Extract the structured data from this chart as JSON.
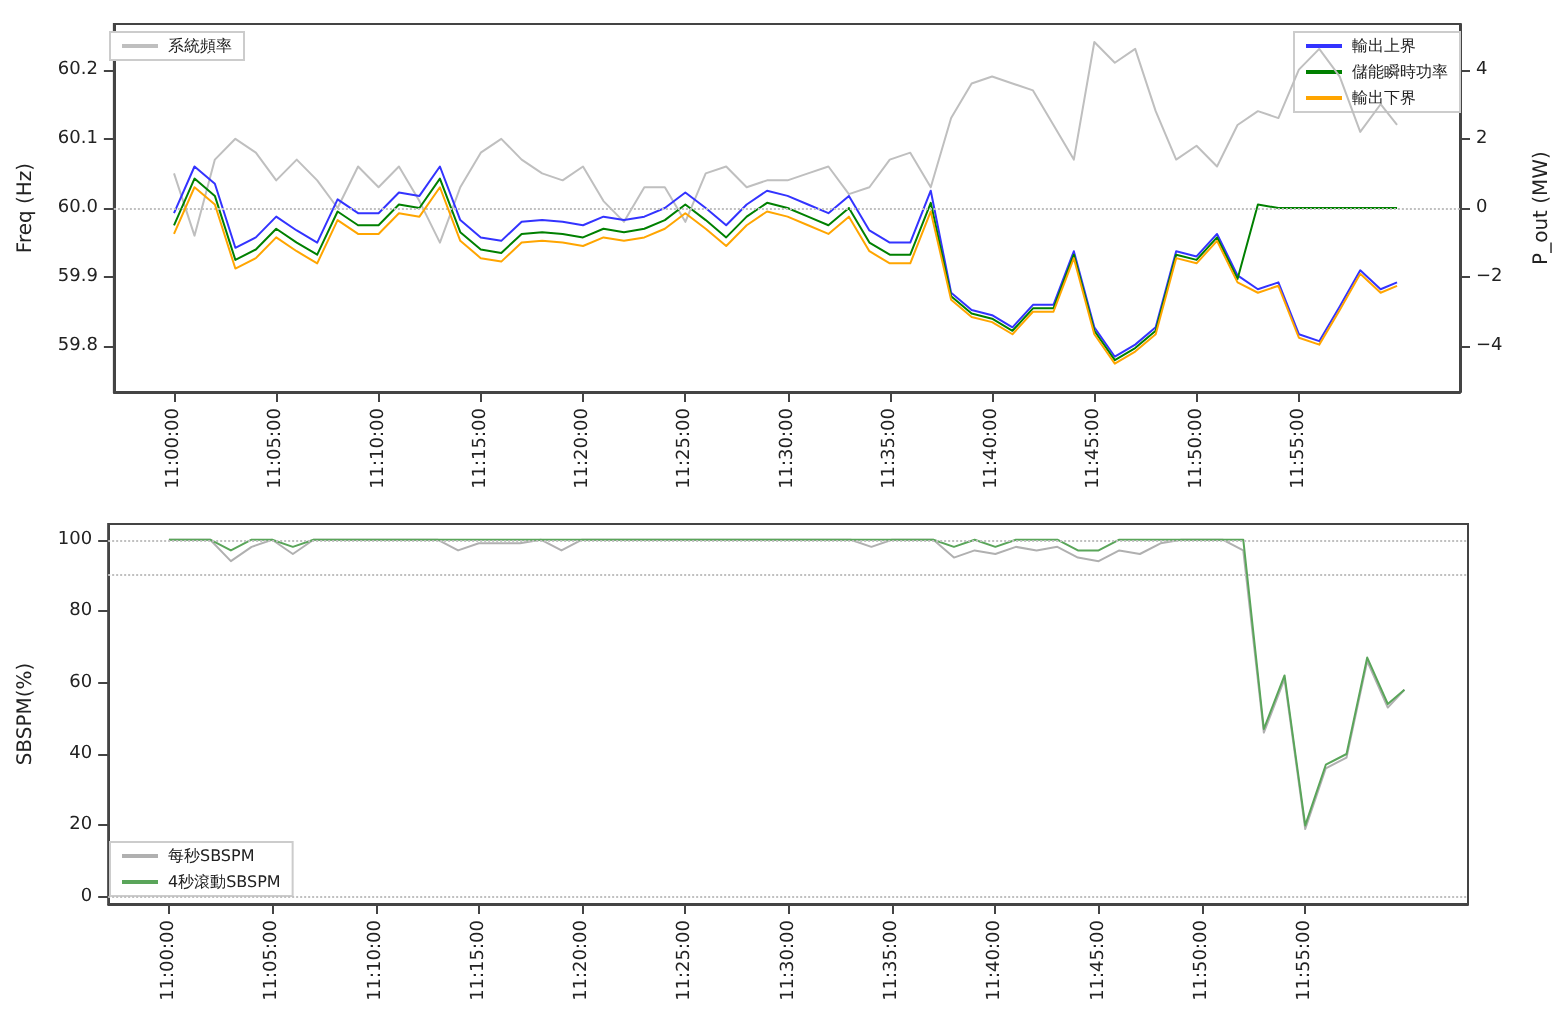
{
  "chart_data": [
    {
      "type": "line",
      "ylabel": "Freq (Hz)",
      "y2label": "P_out (MW)",
      "legend": "top right",
      "grid": false,
      "x": [
        11,
        11.0167,
        11.0333,
        11.05,
        11.0667,
        11.0833,
        11.1,
        11.1167,
        11.1333,
        11.15,
        11.1667,
        11.1833,
        11.2,
        11.2167,
        11.2333,
        11.25,
        11.2667,
        11.2833,
        11.3,
        11.3167,
        11.3333,
        11.35,
        11.3667,
        11.3833,
        11.4,
        11.4167,
        11.4333,
        11.45,
        11.4667,
        11.4833,
        11.5,
        11.5167,
        11.5333,
        11.55,
        11.5667,
        11.5833,
        11.6,
        11.6167,
        11.6333,
        11.65,
        11.6667,
        11.6833,
        11.7,
        11.7167,
        11.7333,
        11.75,
        11.7667,
        11.7833,
        11.8,
        11.8167,
        11.8333,
        11.85,
        11.8667,
        11.8833,
        11.9,
        11.9167,
        11.9333,
        11.95,
        11.9667,
        11.9833,
        11.9967
      ],
      "xlim": [
        10.951,
        12.048
      ],
      "xticks": [
        {
          "value": 11,
          "label": "11:00:00"
        },
        {
          "value": 11.0833,
          "label": "11:05:00"
        },
        {
          "value": 11.1667,
          "label": "11:10:00"
        },
        {
          "value": 11.25,
          "label": "11:15:00"
        },
        {
          "value": 11.3333,
          "label": "11:20:00"
        },
        {
          "value": 11.4167,
          "label": "11:25:00"
        },
        {
          "value": 11.5,
          "label": "11:30:00"
        },
        {
          "value": 11.5833,
          "label": "11:35:00"
        },
        {
          "value": 11.6667,
          "label": "11:40:00"
        },
        {
          "value": 11.75,
          "label": "11:45:00"
        },
        {
          "value": 11.8333,
          "label": "11:50:00"
        },
        {
          "value": 11.9167,
          "label": "11:55:00"
        }
      ],
      "ylim": [
        59.734,
        60.266
      ],
      "yticks": [
        59.8,
        59.9,
        {
          "value": 60,
          "label": "60.0"
        },
        60.1,
        60.2
      ],
      "y2lim": [
        -5.32,
        5.32
      ],
      "y2ticks": [
        {
          "value": -4,
          "label": "−4"
        },
        {
          "value": -2,
          "label": "−2"
        },
        0,
        2,
        4
      ],
      "ref_lines": [
        {
          "axis": "y",
          "value": 60,
          "color": "#c0c0c0",
          "line_style": "dotted"
        }
      ],
      "series": [
        {
          "name": "系統頻率",
          "color": "#bfbfbf",
          "values": [
            60.05,
            59.96,
            60.07,
            60.1,
            60.08,
            60.04,
            60.07,
            60.04,
            60.0,
            60.06,
            60.03,
            60.06,
            60.01,
            59.95,
            60.03,
            60.08,
            60.1,
            60.07,
            60.05,
            60.04,
            60.06,
            60.01,
            59.98,
            60.03,
            60.03,
            59.98,
            60.05,
            60.06,
            60.03,
            60.04,
            60.04,
            60.05,
            60.06,
            60.02,
            60.03,
            60.07,
            60.08,
            60.03,
            60.13,
            60.18,
            60.19,
            60.18,
            60.17,
            60.12,
            60.07,
            60.24,
            60.21,
            60.23,
            60.14,
            60.07,
            60.09,
            60.06,
            60.12,
            60.14,
            60.13,
            60.2,
            60.23,
            60.19,
            60.11,
            60.15,
            60.12
          ]
        },
        {
          "name": "輸出上界",
          "color": "#3333ff",
          "axis": "y2",
          "values": [
            -0.15,
            1.2,
            0.7,
            -1.15,
            -0.85,
            -0.25,
            -0.65,
            -1.0,
            0.25,
            -0.15,
            -0.15,
            0.45,
            0.35,
            1.2,
            -0.35,
            -0.85,
            -0.95,
            -0.4,
            -0.35,
            -0.4,
            -0.5,
            -0.25,
            -0.35,
            -0.25,
            0,
            0.45,
            0,
            -0.5,
            0.1,
            0.5,
            0.35,
            0.1,
            -0.15,
            0.35,
            -0.65,
            -1.0,
            -1.0,
            0.5,
            -2.45,
            -2.95,
            -3.1,
            -3.45,
            -2.8,
            -2.8,
            -1.25,
            -3.45,
            -4.3,
            -3.95,
            -3.45,
            -1.25,
            -1.4,
            -0.75,
            -1.95,
            -2.35,
            -2.15,
            -3.65,
            -3.85,
            -2.85,
            -1.8,
            -2.35,
            -2.15
          ]
        },
        {
          "name": "儲能瞬時功率",
          "color": "#008000",
          "axis": "y2",
          "values": [
            -0.5,
            0.85,
            0.35,
            -1.5,
            -1.2,
            -0.6,
            -1.0,
            -1.35,
            -0.1,
            -0.5,
            -0.5,
            0.1,
            0,
            0.85,
            -0.7,
            -1.2,
            -1.3,
            -0.75,
            -0.7,
            -0.75,
            -0.85,
            -0.6,
            -0.7,
            -0.6,
            -0.35,
            0.1,
            -0.35,
            -0.85,
            -0.25,
            0.15,
            0,
            -0.25,
            -0.5,
            0,
            -1.0,
            -1.35,
            -1.35,
            0.15,
            -2.55,
            -3.05,
            -3.2,
            -3.55,
            -2.9,
            -2.9,
            -1.35,
            -3.55,
            -4.4,
            -4.05,
            -3.55,
            -1.35,
            -1.5,
            -0.85,
            -2.05,
            0.1,
            0,
            0,
            0,
            0,
            0,
            0,
            0
          ]
        },
        {
          "name": "輸出下界",
          "color": "#ffa500",
          "axis": "y2",
          "values": [
            -0.75,
            0.6,
            0.1,
            -1.75,
            -1.45,
            -0.85,
            -1.25,
            -1.6,
            -0.35,
            -0.75,
            -0.75,
            -0.15,
            -0.25,
            0.6,
            -0.95,
            -1.45,
            -1.55,
            -1.0,
            -0.95,
            -1.0,
            -1.1,
            -0.85,
            -0.95,
            -0.85,
            -0.6,
            -0.15,
            -0.6,
            -1.1,
            -0.5,
            -0.1,
            -0.25,
            -0.5,
            -0.75,
            -0.25,
            -1.25,
            -1.6,
            -1.6,
            -0.1,
            -2.65,
            -3.15,
            -3.3,
            -3.65,
            -3.0,
            -3.0,
            -1.45,
            -3.65,
            -4.5,
            -4.15,
            -3.65,
            -1.45,
            -1.6,
            -0.95,
            -2.15,
            -2.45,
            -2.25,
            -3.75,
            -3.95,
            -2.95,
            -1.9,
            -2.45,
            -2.25
          ]
        }
      ]
    },
    {
      "type": "line",
      "ylabel": "SBSPM(%)",
      "legend": "bottom left",
      "grid": false,
      "x": [
        11,
        11.0167,
        11.0333,
        11.05,
        11.0667,
        11.0833,
        11.1,
        11.1167,
        11.1333,
        11.15,
        11.1667,
        11.1833,
        11.2,
        11.2167,
        11.2333,
        11.25,
        11.2667,
        11.2833,
        11.3,
        11.3167,
        11.3333,
        11.35,
        11.3667,
        11.3833,
        11.4,
        11.4167,
        11.4333,
        11.45,
        11.4667,
        11.4833,
        11.5,
        11.5167,
        11.5333,
        11.55,
        11.5667,
        11.5833,
        11.6,
        11.6167,
        11.6333,
        11.65,
        11.6667,
        11.6833,
        11.7,
        11.7167,
        11.7333,
        11.75,
        11.7667,
        11.7833,
        11.8,
        11.8167,
        11.8333,
        11.85,
        11.8667,
        11.8833,
        11.9,
        11.9167,
        11.9333,
        11.95,
        11.9667,
        11.9833,
        11.9967
      ],
      "xlim": [
        10.951,
        12.048
      ],
      "xticks": [
        {
          "value": 11,
          "label": "11:00:00"
        },
        {
          "value": 11.0833,
          "label": "11:05:00"
        },
        {
          "value": 11.1667,
          "label": "11:10:00"
        },
        {
          "value": 11.25,
          "label": "11:15:00"
        },
        {
          "value": 11.3333,
          "label": "11:20:00"
        },
        {
          "value": 11.4167,
          "label": "11:25:00"
        },
        {
          "value": 11.5,
          "label": "11:30:00"
        },
        {
          "value": 11.5833,
          "label": "11:35:00"
        },
        {
          "value": 11.6667,
          "label": "11:40:00"
        },
        {
          "value": 11.75,
          "label": "11:45:00"
        },
        {
          "value": 11.8333,
          "label": "11:50:00"
        },
        {
          "value": 11.9167,
          "label": "11:55:00"
        }
      ],
      "ylim": [
        -2,
        104.4
      ],
      "yticks": [
        0,
        20,
        40,
        60,
        80,
        100
      ],
      "ref_lines": [
        {
          "axis": "y",
          "value": 100,
          "color": "#c0c0c0",
          "line_style": "dotted"
        },
        {
          "axis": "y",
          "value": 90,
          "color": "#c0c0c0",
          "line_style": "dotted"
        },
        {
          "axis": "y",
          "value": 0,
          "color": "#c0c0c0",
          "line_style": "dotted"
        }
      ],
      "series": [
        {
          "name": "每秒SBSPM",
          "color": "#b0b0b0",
          "values": [
            100,
            100,
            100,
            94,
            98,
            100,
            96,
            100,
            100,
            100,
            100,
            100,
            100,
            100,
            97,
            99,
            99,
            99,
            100,
            97,
            100,
            100,
            100,
            100,
            100,
            100,
            100,
            100,
            100,
            100,
            100,
            100,
            100,
            100,
            98,
            100,
            100,
            100,
            95,
            97,
            96,
            98,
            97,
            98,
            95,
            94,
            97,
            96,
            99,
            100,
            100,
            100,
            97,
            46,
            61,
            19,
            36,
            39,
            66,
            53,
            58
          ]
        },
        {
          "name": "4秒滾動SBSPM",
          "color": "#5aa55a",
          "values": [
            100,
            100,
            100,
            97,
            100,
            100,
            98,
            100,
            100,
            100,
            100,
            100,
            100,
            100,
            100,
            100,
            100,
            100,
            100,
            100,
            100,
            100,
            100,
            100,
            100,
            100,
            100,
            100,
            100,
            100,
            100,
            100,
            100,
            100,
            100,
            100,
            100,
            100,
            98,
            100,
            98,
            100,
            100,
            100,
            97,
            97,
            100,
            100,
            100,
            100,
            100,
            100,
            100,
            47,
            62,
            20,
            37,
            40,
            67,
            54,
            58
          ]
        }
      ]
    }
  ]
}
